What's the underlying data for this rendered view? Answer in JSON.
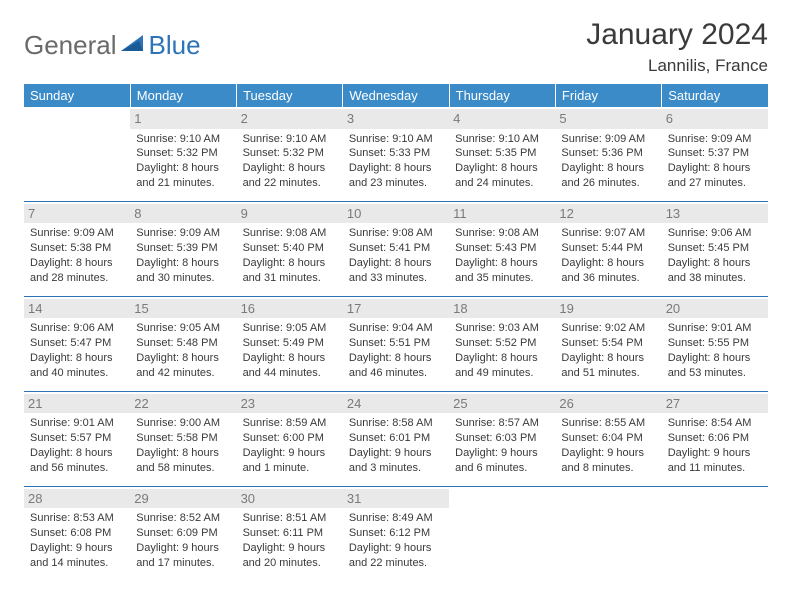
{
  "brand": {
    "part1": "General",
    "part2": "Blue"
  },
  "title": "January 2024",
  "location": "Lannilis, France",
  "colors": {
    "header_bg": "#3b8bc9",
    "header_text": "#ffffff",
    "rule": "#2d73b8",
    "daynum_bg": "#e9e9e9",
    "daynum_text": "#7a7a7a",
    "body_text": "#3a3a3a",
    "brand_gray": "#6a6a6a",
    "brand_blue": "#2d73b8",
    "page_bg": "#ffffff"
  },
  "weekdays": [
    "Sunday",
    "Monday",
    "Tuesday",
    "Wednesday",
    "Thursday",
    "Friday",
    "Saturday"
  ],
  "weeks": [
    [
      null,
      {
        "n": "1",
        "sr": "9:10 AM",
        "ss": "5:32 PM",
        "dl": "8 hours and 21 minutes."
      },
      {
        "n": "2",
        "sr": "9:10 AM",
        "ss": "5:32 PM",
        "dl": "8 hours and 22 minutes."
      },
      {
        "n": "3",
        "sr": "9:10 AM",
        "ss": "5:33 PM",
        "dl": "8 hours and 23 minutes."
      },
      {
        "n": "4",
        "sr": "9:10 AM",
        "ss": "5:35 PM",
        "dl": "8 hours and 24 minutes."
      },
      {
        "n": "5",
        "sr": "9:09 AM",
        "ss": "5:36 PM",
        "dl": "8 hours and 26 minutes."
      },
      {
        "n": "6",
        "sr": "9:09 AM",
        "ss": "5:37 PM",
        "dl": "8 hours and 27 minutes."
      }
    ],
    [
      {
        "n": "7",
        "sr": "9:09 AM",
        "ss": "5:38 PM",
        "dl": "8 hours and 28 minutes."
      },
      {
        "n": "8",
        "sr": "9:09 AM",
        "ss": "5:39 PM",
        "dl": "8 hours and 30 minutes."
      },
      {
        "n": "9",
        "sr": "9:08 AM",
        "ss": "5:40 PM",
        "dl": "8 hours and 31 minutes."
      },
      {
        "n": "10",
        "sr": "9:08 AM",
        "ss": "5:41 PM",
        "dl": "8 hours and 33 minutes."
      },
      {
        "n": "11",
        "sr": "9:08 AM",
        "ss": "5:43 PM",
        "dl": "8 hours and 35 minutes."
      },
      {
        "n": "12",
        "sr": "9:07 AM",
        "ss": "5:44 PM",
        "dl": "8 hours and 36 minutes."
      },
      {
        "n": "13",
        "sr": "9:06 AM",
        "ss": "5:45 PM",
        "dl": "8 hours and 38 minutes."
      }
    ],
    [
      {
        "n": "14",
        "sr": "9:06 AM",
        "ss": "5:47 PM",
        "dl": "8 hours and 40 minutes."
      },
      {
        "n": "15",
        "sr": "9:05 AM",
        "ss": "5:48 PM",
        "dl": "8 hours and 42 minutes."
      },
      {
        "n": "16",
        "sr": "9:05 AM",
        "ss": "5:49 PM",
        "dl": "8 hours and 44 minutes."
      },
      {
        "n": "17",
        "sr": "9:04 AM",
        "ss": "5:51 PM",
        "dl": "8 hours and 46 minutes."
      },
      {
        "n": "18",
        "sr": "9:03 AM",
        "ss": "5:52 PM",
        "dl": "8 hours and 49 minutes."
      },
      {
        "n": "19",
        "sr": "9:02 AM",
        "ss": "5:54 PM",
        "dl": "8 hours and 51 minutes."
      },
      {
        "n": "20",
        "sr": "9:01 AM",
        "ss": "5:55 PM",
        "dl": "8 hours and 53 minutes."
      }
    ],
    [
      {
        "n": "21",
        "sr": "9:01 AM",
        "ss": "5:57 PM",
        "dl": "8 hours and 56 minutes."
      },
      {
        "n": "22",
        "sr": "9:00 AM",
        "ss": "5:58 PM",
        "dl": "8 hours and 58 minutes."
      },
      {
        "n": "23",
        "sr": "8:59 AM",
        "ss": "6:00 PM",
        "dl": "9 hours and 1 minute."
      },
      {
        "n": "24",
        "sr": "8:58 AM",
        "ss": "6:01 PM",
        "dl": "9 hours and 3 minutes."
      },
      {
        "n": "25",
        "sr": "8:57 AM",
        "ss": "6:03 PM",
        "dl": "9 hours and 6 minutes."
      },
      {
        "n": "26",
        "sr": "8:55 AM",
        "ss": "6:04 PM",
        "dl": "9 hours and 8 minutes."
      },
      {
        "n": "27",
        "sr": "8:54 AM",
        "ss": "6:06 PM",
        "dl": "9 hours and 11 minutes."
      }
    ],
    [
      {
        "n": "28",
        "sr": "8:53 AM",
        "ss": "6:08 PM",
        "dl": "9 hours and 14 minutes."
      },
      {
        "n": "29",
        "sr": "8:52 AM",
        "ss": "6:09 PM",
        "dl": "9 hours and 17 minutes."
      },
      {
        "n": "30",
        "sr": "8:51 AM",
        "ss": "6:11 PM",
        "dl": "9 hours and 20 minutes."
      },
      {
        "n": "31",
        "sr": "8:49 AM",
        "ss": "6:12 PM",
        "dl": "9 hours and 22 minutes."
      },
      null,
      null,
      null
    ]
  ],
  "labels": {
    "sunrise": "Sunrise: ",
    "sunset": "Sunset: ",
    "daylight": "Daylight: "
  }
}
